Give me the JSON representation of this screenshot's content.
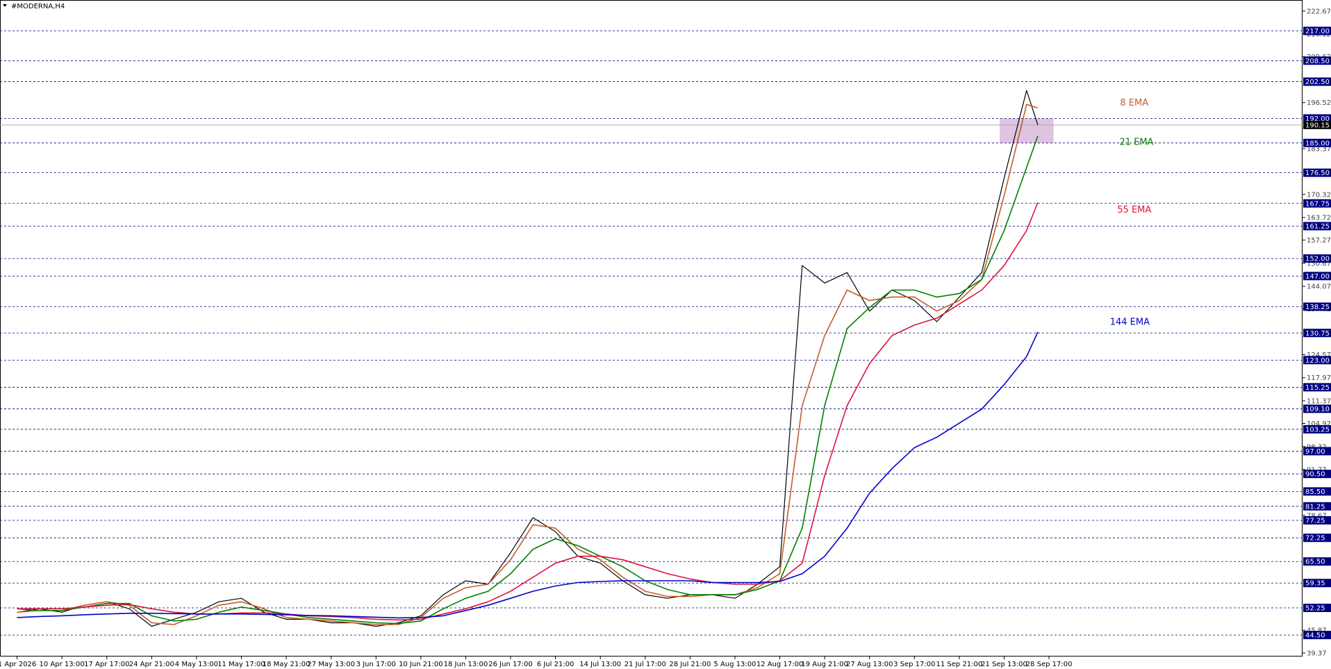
{
  "chart_data": {
    "type": "line",
    "title": "#MODERNA,H4",
    "x": [
      0,
      0.5,
      1,
      1.5,
      2,
      2.5,
      3,
      3.5,
      4,
      4.5,
      5,
      5.5,
      6,
      6.5,
      7,
      7.5,
      8,
      8.5,
      9,
      9.5,
      10,
      10.5,
      11,
      11.5,
      12,
      12.5,
      13,
      13.5,
      14,
      14.5,
      15,
      15.5,
      16,
      16.5,
      17,
      17.5,
      18,
      18.5,
      19,
      19.5,
      20,
      20.5,
      21,
      21.5,
      22,
      22.5,
      22.75
    ],
    "series": [
      {
        "name": "Price",
        "color": "#000000",
        "values": [
          51,
          52,
          51,
          53,
          54,
          52,
          47,
          49,
          51,
          54,
          55,
          51,
          49,
          49,
          48,
          48,
          47,
          48,
          50,
          56,
          60,
          59,
          68,
          78,
          74,
          67,
          65,
          60,
          56,
          55,
          56,
          56,
          55,
          59,
          64,
          150,
          145,
          148,
          137,
          143,
          140,
          134,
          141,
          148,
          175,
          200,
          190.15
        ]
      },
      {
        "name": "8 EMA",
        "color": "#c0602b",
        "values": [
          51,
          51.5,
          51.5,
          53,
          54,
          53,
          48,
          47.5,
          50,
          53,
          54,
          52,
          49.5,
          49,
          48.5,
          48,
          47.5,
          47.5,
          49.5,
          55,
          58,
          59,
          66,
          76,
          75,
          69,
          66,
          61,
          57,
          55.5,
          55.5,
          56,
          56,
          58,
          62,
          110,
          130,
          143,
          140,
          141,
          141,
          137,
          140,
          146,
          170,
          196,
          195
        ]
      },
      {
        "name": "21 EMA",
        "color": "#008000",
        "values": [
          52,
          51.5,
          51.5,
          52.5,
          53.5,
          53.5,
          50,
          48.5,
          49,
          51,
          52.5,
          51.5,
          50.5,
          49.5,
          49,
          48.5,
          48,
          47.8,
          48.5,
          52,
          55,
          57,
          62,
          69,
          72,
          70,
          67,
          64,
          60,
          57.5,
          56,
          56,
          56,
          57.5,
          60,
          75,
          110,
          132,
          138,
          143,
          143,
          141,
          142,
          146,
          160,
          178,
          187
        ]
      },
      {
        "name": "55 EMA",
        "color": "#dc143c",
        "values": [
          52,
          52,
          52,
          52.5,
          53,
          53.2,
          52,
          51,
          50.5,
          50.5,
          50.8,
          50.8,
          50.5,
          50,
          49.8,
          49.5,
          49,
          48.8,
          49,
          50.5,
          52,
          54,
          57,
          61,
          65,
          67,
          67,
          66,
          64,
          62,
          60.5,
          59.5,
          59,
          59,
          60,
          65,
          90,
          110,
          122,
          130,
          133,
          135,
          139,
          143,
          150,
          160,
          168
        ]
      },
      {
        "name": "144 EMA",
        "color": "#0000cd",
        "values": [
          49.5,
          49.8,
          50,
          50.3,
          50.5,
          50.7,
          50.7,
          50.6,
          50.5,
          50.5,
          50.5,
          50.4,
          50.3,
          50.1,
          50,
          49.8,
          49.6,
          49.4,
          49.5,
          50,
          51.5,
          53,
          55,
          57,
          58.5,
          59.5,
          59.8,
          60,
          60,
          60,
          60,
          59.5,
          59.5,
          59.5,
          59.8,
          62,
          67,
          75,
          85,
          92,
          98,
          101,
          105,
          109,
          116,
          124,
          131
        ]
      }
    ],
    "xlim": [
      -0.38,
      28.65
    ],
    "ylim": [
      38.37,
      225.82
    ],
    "xticks": [
      {
        "value": 0,
        "label": "1 Apr 2026"
      },
      {
        "value": 1,
        "label": "10 Apr 13:00"
      },
      {
        "value": 2,
        "label": "17 Apr 17:00"
      },
      {
        "value": 3,
        "label": "24 Apr 21:00"
      },
      {
        "value": 4,
        "label": "4 May 13:00"
      },
      {
        "value": 5,
        "label": "11 May 17:00"
      },
      {
        "value": 6,
        "label": "18 May 21:00"
      },
      {
        "value": 7,
        "label": "27 May 13:00"
      },
      {
        "value": 8,
        "label": "3 Jun 17:00"
      },
      {
        "value": 9,
        "label": "10 Jun 21:00"
      },
      {
        "value": 10,
        "label": "18 Jun 13:00"
      },
      {
        "value": 11,
        "label": "26 Jun 17:00"
      },
      {
        "value": 12,
        "label": "6 Jul 21:00"
      },
      {
        "value": 13,
        "label": "14 Jul 13:00"
      },
      {
        "value": 14,
        "label": "21 Jul 17:00"
      },
      {
        "value": 15,
        "label": "28 Jul 21:00"
      },
      {
        "value": 16,
        "label": "5 Aug 13:00"
      },
      {
        "value": 17,
        "label": "12 Aug 17:00"
      },
      {
        "value": 18,
        "label": "19 Aug 21:00"
      },
      {
        "value": 19,
        "label": "27 Aug 13:00"
      },
      {
        "value": 20,
        "label": "3 Sep 17:00"
      },
      {
        "value": 21,
        "label": "11 Sep 21:00"
      },
      {
        "value": 22,
        "label": "21 Sep 13:00"
      },
      {
        "value": 23,
        "label": "28 Sep 17:00"
      }
    ],
    "yticks": [
      222.67,
      216.12,
      209.62,
      196.52,
      183.37,
      170.32,
      163.72,
      157.27,
      150.67,
      144.07,
      137.62,
      124.57,
      117.97,
      111.37,
      104.92,
      98.32,
      91.77,
      78.67,
      45.87,
      39.37
    ],
    "levels": [
      {
        "value": 217,
        "label": "217.00"
      },
      {
        "value": 208.5,
        "label": "208.50"
      },
      {
        "value": 202.5,
        "label": "202.50"
      },
      {
        "value": 192,
        "label": "192.00"
      },
      {
        "value": 185,
        "label": "185.00"
      },
      {
        "value": 176.5,
        "label": "176.50"
      },
      {
        "value": 167.75,
        "label": "167.75"
      },
      {
        "value": 161.25,
        "label": "161.25"
      },
      {
        "value": 152,
        "label": "152.00"
      },
      {
        "value": 147,
        "label": "147.00"
      },
      {
        "value": 138.25,
        "label": "138.25"
      },
      {
        "value": 130.75,
        "label": "130.75"
      },
      {
        "value": 123,
        "label": "123.00"
      },
      {
        "value": 115.25,
        "label": "115.25"
      },
      {
        "value": 109.1,
        "label": "109.10"
      },
      {
        "value": 103.25,
        "label": "103.25"
      },
      {
        "value": 97,
        "label": "97.00"
      },
      {
        "value": 90.5,
        "label": "90.50"
      },
      {
        "value": 85.5,
        "label": "85.50"
      },
      {
        "value": 81.25,
        "label": "81.25"
      },
      {
        "value": 77.25,
        "label": "77.25"
      },
      {
        "value": 72.25,
        "label": "72.25"
      },
      {
        "value": 65.5,
        "label": "65.50"
      },
      {
        "value": 59.35,
        "label": "59.35"
      },
      {
        "value": 52.25,
        "label": "52.25"
      },
      {
        "value": 44.5,
        "label": "44.50"
      }
    ],
    "level_color": "#000080",
    "current_price": 190.15,
    "zone": {
      "xlim": [
        21.9,
        23.1
      ],
      "ylim": [
        185,
        192
      ],
      "color": "#d8b4d8"
    },
    "annotations": [
      {
        "text": "8 EMA",
        "x": 24.9,
        "y": 196.5,
        "color": "#c0602b"
      },
      {
        "text": "21 EMA",
        "x": 24.95,
        "y": 185.3,
        "color": "#008000"
      },
      {
        "text": "55 EMA",
        "x": 24.9,
        "y": 165.9,
        "color": "#dc143c"
      },
      {
        "text": "144 EMA",
        "x": 24.8,
        "y": 133.9,
        "color": "#0000cd"
      }
    ]
  }
}
